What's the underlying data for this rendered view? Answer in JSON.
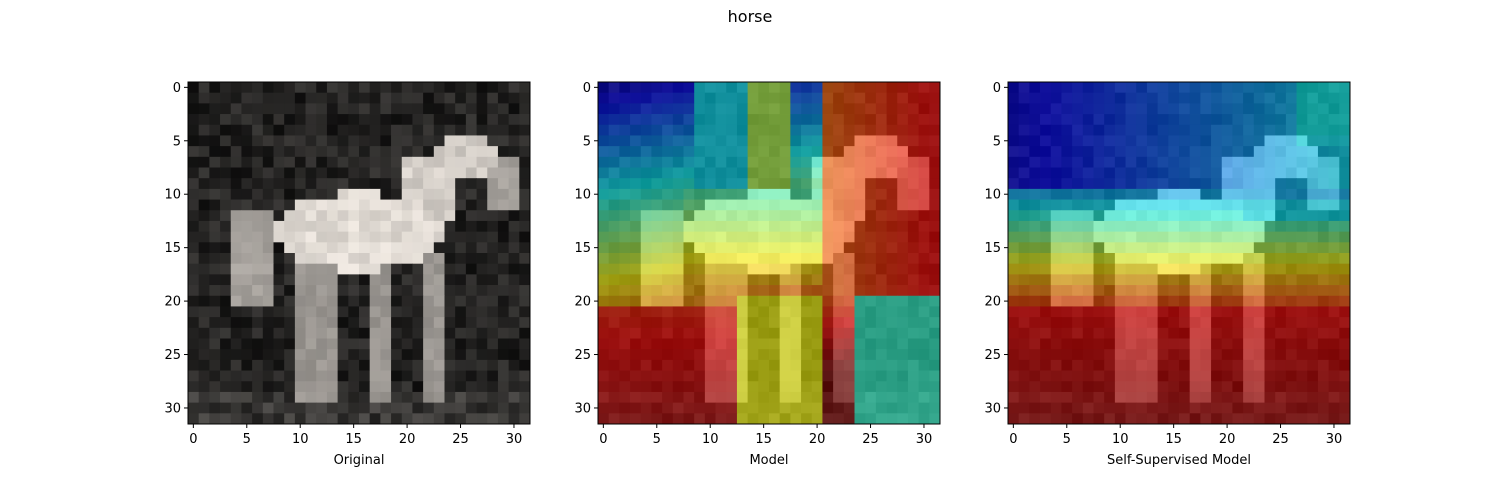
{
  "figure": {
    "title": "horse"
  },
  "chart_data": [
    {
      "type": "heatmap",
      "title": "",
      "xlabel": "Original",
      "ylabel": "",
      "xlim": [
        -0.5,
        31.5
      ],
      "ylim": [
        31.5,
        -0.5
      ],
      "xticks": [
        0,
        5,
        10,
        15,
        20,
        25,
        30
      ],
      "yticks": [
        0,
        5,
        10,
        15,
        20,
        25,
        30
      ],
      "content": "grayscale photo of a white horse on dark background (32x32)",
      "overlay": "none"
    },
    {
      "type": "heatmap",
      "title": "",
      "xlabel": "Model",
      "ylabel": "",
      "xlim": [
        -0.5,
        31.5
      ],
      "ylim": [
        31.5,
        -0.5
      ],
      "xticks": [
        0,
        5,
        10,
        15,
        20,
        25,
        30
      ],
      "yticks": [
        0,
        5,
        10,
        15,
        20,
        25,
        30
      ],
      "content": "horse image with jet colormap saliency overlay",
      "overlay": "jet"
    },
    {
      "type": "heatmap",
      "title": "",
      "xlabel": "Self-Supervised Model",
      "ylabel": "",
      "xlim": [
        -0.5,
        31.5
      ],
      "ylim": [
        31.5,
        -0.5
      ],
      "xticks": [
        0,
        5,
        10,
        15,
        20,
        25,
        30
      ],
      "yticks": [
        0,
        5,
        10,
        15,
        20,
        25,
        30
      ],
      "content": "horse image with jet colormap saliency overlay",
      "overlay": "jet"
    }
  ]
}
